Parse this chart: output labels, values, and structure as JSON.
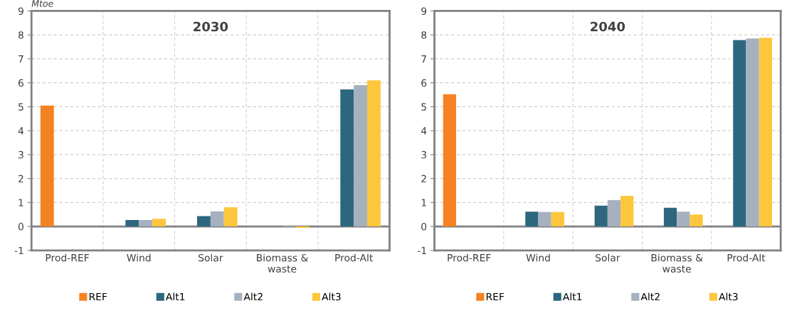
{
  "chart_data": [
    {
      "type": "bar",
      "title": "2030",
      "ylabel": "Mtoe",
      "categories": [
        "Prod-REF",
        "Wind",
        "Solar",
        "Biomass &\nwaste",
        "Prod-Alt"
      ],
      "ylim": [
        -1,
        9
      ],
      "yticks": [
        -1,
        0,
        1,
        2,
        3,
        4,
        5,
        6,
        7,
        8,
        9
      ],
      "grid": true,
      "legend": "bottom",
      "ref_lines": [
        {
          "axis": "y",
          "value": 0,
          "color": "#808080"
        }
      ],
      "series": [
        {
          "name": "REF",
          "color": "#f58220",
          "values": [
            5.05,
            null,
            null,
            null,
            null
          ]
        },
        {
          "name": "Alt1",
          "color": "#2c677e",
          "values": [
            null,
            0.27,
            0.43,
            0,
            5.72
          ]
        },
        {
          "name": "Alt2",
          "color": "#a5b1bf",
          "values": [
            null,
            0.27,
            0.63,
            -0.06,
            5.9
          ]
        },
        {
          "name": "Alt3",
          "color": "#fec63d",
          "values": [
            null,
            0.32,
            0.8,
            -0.06,
            6.1
          ]
        }
      ]
    },
    {
      "type": "bar",
      "title": "2040",
      "categories": [
        "Prod-REF",
        "Wind",
        "Solar",
        "Biomass &\nwaste",
        "Prod-Alt"
      ],
      "ylim": [
        -1,
        9
      ],
      "yticks": [
        -1,
        0,
        1,
        2,
        3,
        4,
        5,
        6,
        7,
        8,
        9
      ],
      "grid": true,
      "legend": "bottom",
      "ref_lines": [
        {
          "axis": "y",
          "value": 0,
          "color": "#808080"
        }
      ],
      "series": [
        {
          "name": "REF",
          "color": "#f58220",
          "values": [
            5.52,
            null,
            null,
            null,
            null
          ]
        },
        {
          "name": "Alt1",
          "color": "#2c677e",
          "values": [
            null,
            0.62,
            0.87,
            0.78,
            7.78
          ]
        },
        {
          "name": "Alt2",
          "color": "#a5b1bf",
          "values": [
            null,
            0.6,
            1.1,
            0.62,
            7.85
          ]
        },
        {
          "name": "Alt3",
          "color": "#fec63d",
          "values": [
            null,
            0.6,
            1.28,
            0.5,
            7.88
          ]
        }
      ]
    }
  ]
}
